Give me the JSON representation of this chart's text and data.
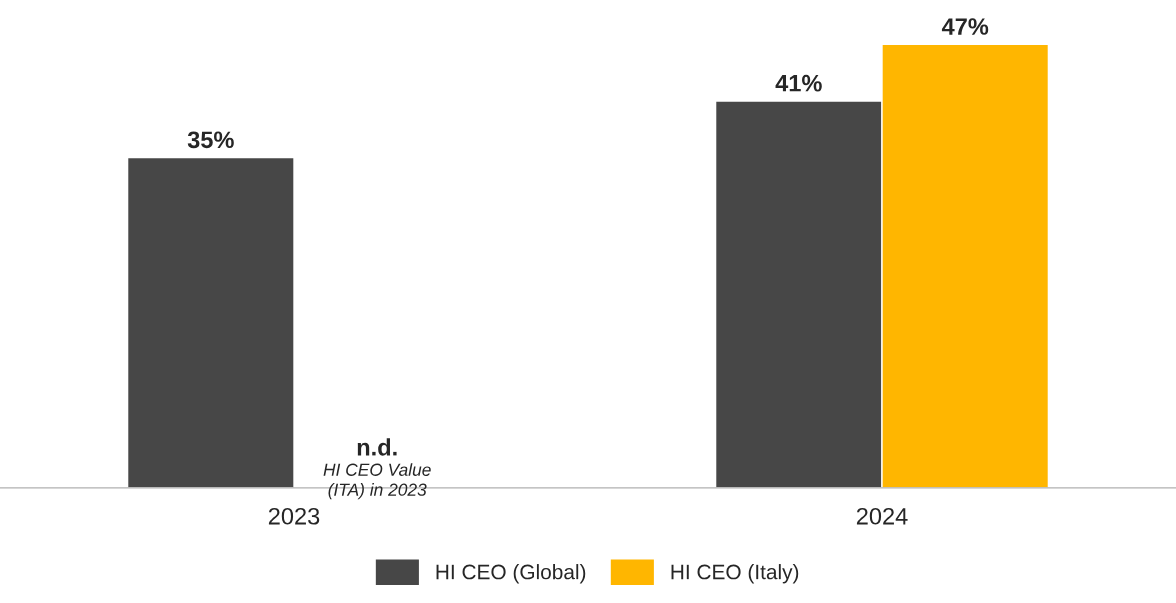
{
  "chart_data": {
    "type": "bar",
    "categories": [
      "2023",
      "2024"
    ],
    "series": [
      {
        "name": "HI CEO (Global)",
        "color": "#474747",
        "values": [
          35,
          41
        ],
        "value_labels": [
          "35%",
          "41%"
        ]
      },
      {
        "name": "HI CEO (Italy)",
        "color": "#ffb600",
        "values": [
          null,
          47
        ],
        "value_labels": [
          "n.d.",
          "47%"
        ]
      }
    ],
    "annotations": [
      {
        "text": "HI CEO Value\n(ITA) in 2023",
        "x": "2023"
      }
    ],
    "grid": false,
    "legend": "bottom"
  }
}
